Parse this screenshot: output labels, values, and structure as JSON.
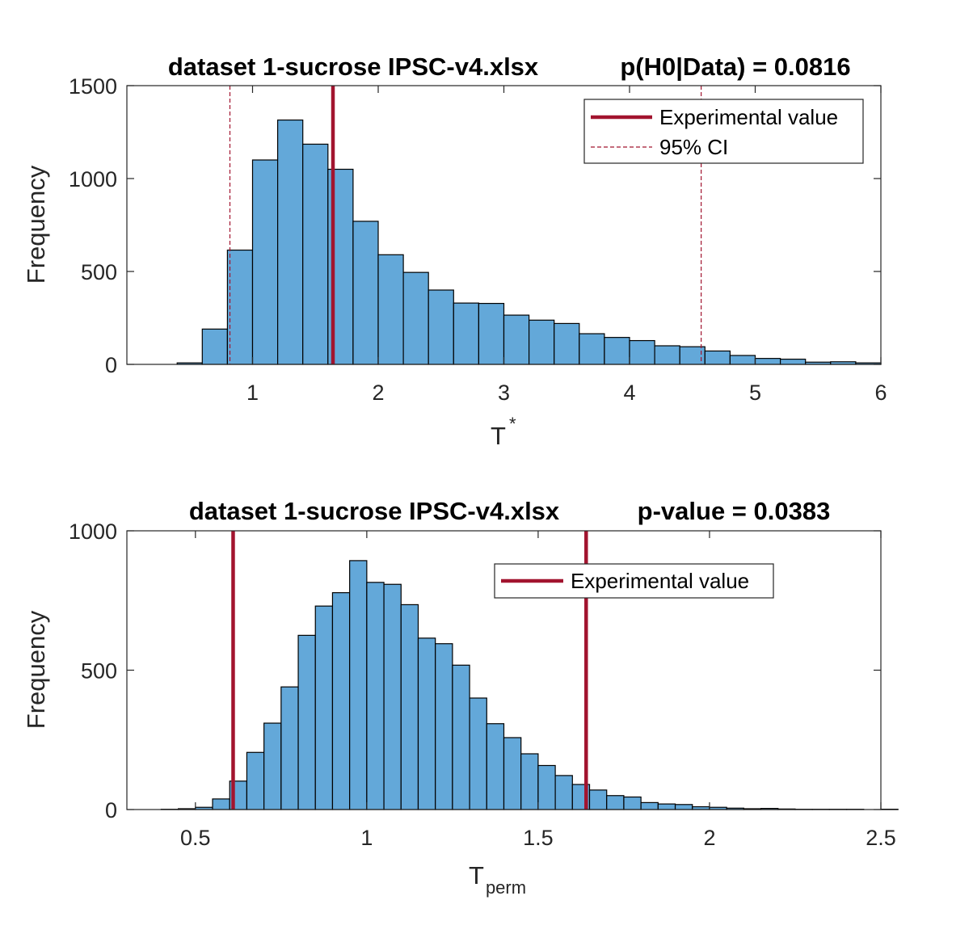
{
  "chart_data": [
    {
      "type": "bar",
      "title_left": "dataset 1-sucrose IPSC-v4.xlsx",
      "title_right": "p(H0|Data) = 0.0816",
      "xlabel": "T",
      "xlabel_superscript": "*",
      "ylabel": "Frequency",
      "xlim": [
        0,
        6
      ],
      "ylim": [
        0,
        1500
      ],
      "xticks": [
        "1",
        "2",
        "3",
        "4",
        "5",
        "6"
      ],
      "yticks": [
        "0",
        "500",
        "1000",
        "1500"
      ],
      "bin_width": 0.2,
      "bin_edges_start": 0.4,
      "values": [
        8,
        190,
        615,
        1100,
        1315,
        1185,
        1050,
        770,
        590,
        495,
        400,
        330,
        328,
        265,
        238,
        220,
        165,
        145,
        128,
        100,
        95,
        72,
        48,
        32,
        28,
        12,
        14,
        8
      ],
      "experimental_value": 1.64,
      "ci": [
        0.82,
        4.57
      ],
      "legend": {
        "placement": "top-right",
        "entries": [
          "Experimental value",
          "95% CI"
        ]
      },
      "colors": {
        "bar": "#63a8d9",
        "line": "#a2142f"
      }
    },
    {
      "type": "bar",
      "title_left": "dataset 1-sucrose IPSC-v4.xlsx",
      "title_right": "p-value = 0.0383",
      "xlabel": "T",
      "xlabel_subscript": "perm",
      "ylabel": "Frequency",
      "xlim": [
        0.3,
        2.5
      ],
      "ylim": [
        0,
        1000
      ],
      "xticks": [
        "0.5",
        "1",
        "1.5",
        "2",
        "2.5"
      ],
      "yticks": [
        "0",
        "500",
        "1000"
      ],
      "bin_width": 0.05,
      "bin_edges_start": 0.35,
      "values": [
        0,
        1,
        3,
        8,
        38,
        102,
        205,
        310,
        440,
        625,
        730,
        778,
        893,
        815,
        808,
        735,
        615,
        595,
        518,
        400,
        308,
        258,
        200,
        158,
        122,
        90,
        70,
        50,
        45,
        25,
        20,
        18,
        10,
        8,
        5,
        3,
        4,
        2,
        1,
        1,
        1,
        1,
        0,
        1
      ],
      "experimental_values": [
        0.61,
        1.64
      ],
      "legend": {
        "placement": "top-right",
        "entries": [
          "Experimental value"
        ]
      },
      "colors": {
        "bar": "#63a8d9",
        "line": "#a2142f"
      }
    }
  ]
}
